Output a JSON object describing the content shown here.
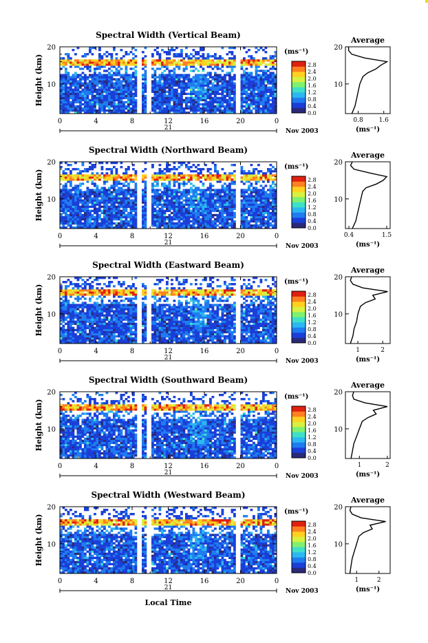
{
  "panels": [
    {
      "title": "Spectral Width (Vertical Beam)",
      "average": {
        "title": "Average",
        "x_ticks": [
          "0.8",
          "1.6"
        ],
        "x_range": [
          0.4,
          1.8
        ]
      }
    },
    {
      "title": "Spectral Width (Northward Beam)",
      "average": {
        "title": "Average",
        "x_ticks": [
          "0.4",
          "1.5"
        ],
        "x_range": [
          0.3,
          1.6
        ]
      }
    },
    {
      "title": "Spectral Width (Eastward Beam)",
      "average": {
        "title": "Average",
        "x_ticks": [
          "1",
          "2"
        ],
        "x_range": [
          0.5,
          2.3
        ]
      }
    },
    {
      "title": "Spectral Width (Southward Beam)",
      "average": {
        "title": "Average",
        "x_ticks": [
          "1",
          "2"
        ],
        "x_range": [
          0.5,
          2.1
        ]
      }
    },
    {
      "title": "Spectral Width (Westward Beam)",
      "average": {
        "title": "Average",
        "x_ticks": [
          "1",
          "2"
        ],
        "x_range": [
          0.5,
          2.5
        ]
      }
    }
  ],
  "common": {
    "ylabel": "Height (km)",
    "y_ticks": [
      "20",
      "10"
    ],
    "y_range_km": [
      2,
      20
    ],
    "x_ticks": [
      "0",
      "4",
      "8",
      "12",
      "16",
      "20",
      "0"
    ],
    "x_range_hours": [
      0,
      24
    ],
    "day_label": "21",
    "month_label": "Nov 2003",
    "xlabel_bottom": "Local Time",
    "unit_label": "(ms⁻¹)",
    "avg_xlabel": "(ms⁻¹)"
  },
  "colorbar": {
    "ticks": [
      "2.8",
      "2.4",
      "2.0",
      "1.6",
      "1.2",
      "0.8",
      "0.4",
      "0.0"
    ],
    "range": [
      0,
      3.0
    ],
    "colors": [
      "#2a2a7a",
      "#1a3fd8",
      "#1f7cf0",
      "#2bb8f0",
      "#3fe0c8",
      "#7ff070",
      "#d8f040",
      "#ffd020",
      "#ff8020",
      "#e02010"
    ]
  },
  "chart_data": [
    {
      "type": "heatmap",
      "title": "Spectral Width (Vertical Beam)",
      "xlabel": "",
      "ylabel": "Height (km)",
      "x_ticks": [
        "0",
        "4",
        "8",
        "12",
        "16",
        "20",
        "0"
      ],
      "ylim": [
        2,
        20
      ],
      "colorbar_ticks": [
        2.8,
        2.4,
        2.0,
        1.6,
        1.2,
        0.8,
        0.4,
        0.0
      ],
      "average_profile": {
        "height_km": [
          2,
          4,
          6,
          8,
          10,
          12,
          13,
          14,
          15,
          16,
          17,
          18,
          19,
          20
        ],
        "width_ms": [
          0.6,
          0.7,
          0.75,
          0.8,
          0.85,
          0.95,
          1.1,
          1.35,
          1.5,
          1.7,
          1.0,
          0.6,
          0.5,
          0.5
        ]
      }
    },
    {
      "type": "heatmap",
      "title": "Spectral Width (Northward Beam)",
      "xlabel": "",
      "ylabel": "Height (km)",
      "x_ticks": [
        "0",
        "4",
        "8",
        "12",
        "16",
        "20",
        "0"
      ],
      "ylim": [
        2,
        20
      ],
      "colorbar_ticks": [
        2.8,
        2.4,
        2.0,
        1.6,
        1.2,
        0.8,
        0.4,
        0.0
      ],
      "average_profile": {
        "height_km": [
          2,
          4,
          6,
          8,
          10,
          12,
          13,
          14,
          15,
          16,
          17,
          18,
          19,
          20
        ],
        "width_ms": [
          0.5,
          0.6,
          0.65,
          0.7,
          0.75,
          0.8,
          0.9,
          1.2,
          1.4,
          1.5,
          1.0,
          0.55,
          0.45,
          0.5
        ]
      }
    },
    {
      "type": "heatmap",
      "title": "Spectral Width (Eastward Beam)",
      "xlabel": "",
      "ylabel": "Height (km)",
      "x_ticks": [
        "0",
        "4",
        "8",
        "12",
        "16",
        "20",
        "0"
      ],
      "ylim": [
        2,
        20
      ],
      "colorbar_ticks": [
        2.8,
        2.4,
        2.0,
        1.6,
        1.2,
        0.8,
        0.4,
        0.0
      ],
      "average_profile": {
        "height_km": [
          2,
          4,
          6,
          8,
          10,
          12,
          13,
          14,
          15,
          16,
          17,
          18,
          19,
          20
        ],
        "width_ms": [
          0.7,
          0.8,
          0.85,
          0.95,
          1.0,
          1.1,
          1.3,
          1.7,
          1.6,
          2.2,
          1.2,
          0.8,
          0.7,
          0.75
        ]
      }
    },
    {
      "type": "heatmap",
      "title": "Spectral Width (Southward Beam)",
      "xlabel": "",
      "ylabel": "Height (km)",
      "x_ticks": [
        "0",
        "4",
        "8",
        "12",
        "16",
        "20",
        "0"
      ],
      "ylim": [
        2,
        20
      ],
      "colorbar_ticks": [
        2.8,
        2.4,
        2.0,
        1.6,
        1.2,
        0.8,
        0.4,
        0.0
      ],
      "average_profile": {
        "height_km": [
          2,
          4,
          6,
          8,
          10,
          12,
          13,
          14,
          15,
          16,
          17,
          18,
          19,
          20
        ],
        "width_ms": [
          0.7,
          0.75,
          0.8,
          0.9,
          1.0,
          1.1,
          1.3,
          1.6,
          1.5,
          2.0,
          1.2,
          0.8,
          0.75,
          0.8
        ]
      }
    },
    {
      "type": "heatmap",
      "title": "Spectral Width (Westward Beam)",
      "xlabel": "Local Time",
      "ylabel": "Height (km)",
      "x_ticks": [
        "0",
        "4",
        "8",
        "12",
        "16",
        "20",
        "0"
      ],
      "ylim": [
        2,
        20
      ],
      "colorbar_ticks": [
        2.8,
        2.4,
        2.0,
        1.6,
        1.2,
        0.8,
        0.4,
        0.0
      ],
      "average_profile": {
        "height_km": [
          2,
          4,
          6,
          8,
          10,
          12,
          13,
          14,
          15,
          16,
          17,
          18,
          19,
          20
        ],
        "width_ms": [
          0.7,
          0.75,
          0.8,
          0.9,
          1.0,
          1.1,
          1.3,
          1.7,
          1.6,
          2.3,
          1.2,
          0.8,
          0.7,
          0.75
        ]
      }
    }
  ]
}
